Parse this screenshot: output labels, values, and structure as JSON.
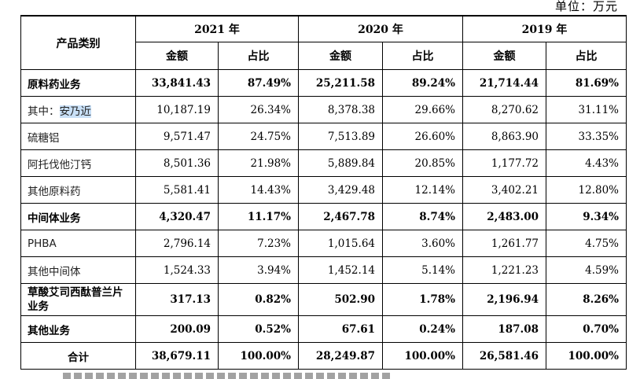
{
  "unit_label": "单位：万元",
  "header": {
    "category": "产品类别",
    "years": [
      "2021 年",
      "2020 年",
      "2019 年"
    ],
    "amount": "金额",
    "ratio": "占比"
  },
  "rows": [
    {
      "label": "原料药业务",
      "bold": true,
      "v": [
        "33,841.43",
        "87.49%",
        "25,211.58",
        "89.24%",
        "21,714.44",
        "81.69%"
      ]
    },
    {
      "label_prefix": "其中：",
      "label_highlight": "安乃近",
      "bold": false,
      "v": [
        "10,187.19",
        "26.34%",
        "8,378.38",
        "29.66%",
        "8,270.62",
        "31.11%"
      ]
    },
    {
      "label": "硫糖铝",
      "bold": false,
      "v": [
        "9,571.47",
        "24.75%",
        "7,513.89",
        "26.60%",
        "8,863.90",
        "33.35%"
      ]
    },
    {
      "label": "阿托伐他汀钙",
      "bold": false,
      "v": [
        "8,501.36",
        "21.98%",
        "5,889.84",
        "20.85%",
        "1,177.72",
        "4.43%"
      ]
    },
    {
      "label": "其他原料药",
      "bold": false,
      "v": [
        "5,581.41",
        "14.43%",
        "3,429.48",
        "12.14%",
        "3,402.21",
        "12.80%"
      ]
    },
    {
      "label": "中间体业务",
      "bold": true,
      "v": [
        "4,320.47",
        "11.17%",
        "2,467.78",
        "8.74%",
        "2,483.00",
        "9.34%"
      ]
    },
    {
      "label": "PHBA",
      "bold": false,
      "v": [
        "2,796.14",
        "7.23%",
        "1,015.64",
        "3.60%",
        "1,261.77",
        "4.75%"
      ]
    },
    {
      "label": "其他中间体",
      "bold": false,
      "v": [
        "1,524.33",
        "3.94%",
        "1,452.14",
        "5.14%",
        "1,221.23",
        "4.59%"
      ]
    },
    {
      "label": "草酸艾司西酞普兰片业务",
      "bold": true,
      "tall": true,
      "v": [
        "317.13",
        "0.82%",
        "502.90",
        "1.78%",
        "2,196.94",
        "8.26%"
      ]
    },
    {
      "label": "其他业务",
      "bold": true,
      "v": [
        "200.09",
        "0.52%",
        "67.61",
        "0.24%",
        "187.08",
        "0.70%"
      ]
    },
    {
      "label": "合计",
      "bold": true,
      "total": true,
      "v": [
        "38,679.11",
        "100.00%",
        "28,249.87",
        "100.00%",
        "26,581.46",
        "100.00%"
      ]
    }
  ],
  "colors": {
    "highlight": "#c9e0f7"
  }
}
